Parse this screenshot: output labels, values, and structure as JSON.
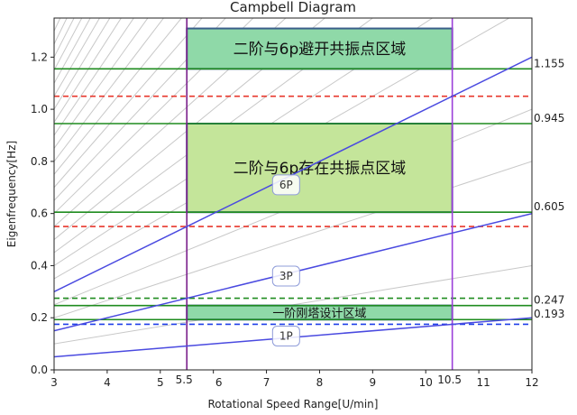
{
  "chart_data": {
    "type": "line",
    "title": "Campbell Diagram",
    "xlabel": "Rotational Speed Range[U/min]",
    "ylabel": "Eigenfrequency[Hz]",
    "xlim": [
      3,
      12
    ],
    "ylim": [
      0,
      1.35
    ],
    "x_ticks": [
      3,
      4,
      5,
      6,
      7,
      8,
      9,
      10,
      11,
      12
    ],
    "x_tick_labels": [
      "3",
      "4",
      "5",
      "6",
      "7",
      "8",
      "9",
      "10",
      "11",
      "12"
    ],
    "y_ticks": [
      0.0,
      0.2,
      0.4,
      0.6,
      0.8,
      1.0,
      1.2
    ],
    "y_tick_labels": [
      "0.0",
      "0.2",
      "0.4",
      "0.6",
      "0.8",
      "1.0",
      "1.2"
    ],
    "vertical_lines": [
      {
        "x": 5.5,
        "label": "5.5",
        "color": "#7a1f8c"
      },
      {
        "x": 10.5,
        "label": "10.5",
        "color": "#9b3fd9"
      }
    ],
    "horizontal_lines": [
      {
        "y": 1.155,
        "color": "#1f8c1f",
        "style": "solid",
        "label": "1.155"
      },
      {
        "y": 1.05,
        "color": "#e8372c",
        "style": "dashed",
        "label": ""
      },
      {
        "y": 0.945,
        "color": "#1f8c1f",
        "style": "solid",
        "label": "0.945"
      },
      {
        "y": 0.605,
        "color": "#1f8c1f",
        "style": "solid",
        "label": "0.605"
      },
      {
        "y": 0.55,
        "color": "#e8372c",
        "style": "dashed",
        "label": ""
      },
      {
        "y": 0.275,
        "color": "#1f8c1f",
        "style": "dashed",
        "label": ""
      },
      {
        "y": 0.247,
        "color": "#1f8c1f",
        "style": "solid",
        "label": "0.247"
      },
      {
        "y": 0.193,
        "color": "#1f8c1f",
        "style": "solid",
        "label": "0.193"
      },
      {
        "y": 0.175,
        "color": "#1f3fe8",
        "style": "dashed",
        "label": ""
      }
    ],
    "regions": [
      {
        "x": [
          5.5,
          10.5
        ],
        "y": [
          1.155,
          1.31
        ],
        "label": "二阶与6p避开共振点区域",
        "fill": "#8fd9a8"
      },
      {
        "x": [
          5.5,
          10.5
        ],
        "y": [
          0.605,
          0.945
        ],
        "label": "二阶与6p存在共振点区域",
        "fill": "#c4e59a"
      },
      {
        "x": [
          5.5,
          10.5
        ],
        "y": [
          0.193,
          0.247
        ],
        "label": "一阶刚塔设计区域",
        "fill": "#8fd9a8"
      }
    ],
    "series": [
      {
        "name": "1P",
        "multiplier": 1,
        "color": "#4a4ae0"
      },
      {
        "name": "3P",
        "multiplier": 3,
        "color": "#4a4ae0"
      },
      {
        "name": "6P",
        "multiplier": 6,
        "color": "#4a4ae0"
      }
    ],
    "series_labels": [
      {
        "text": "1P",
        "x": 7.2,
        "y": 0.13
      },
      {
        "text": "3P",
        "x": 7.2,
        "y": 0.36
      },
      {
        "text": "6P",
        "x": 7.2,
        "y": 0.71
      }
    ],
    "background_multipliers": [
      2,
      4,
      5,
      7,
      8,
      9,
      10,
      11,
      12,
      13,
      14,
      15,
      16,
      17,
      18,
      19,
      20,
      21,
      22,
      23,
      24,
      25,
      26,
      27,
      28,
      29,
      30,
      32,
      34,
      36,
      38,
      40
    ],
    "grid": false
  }
}
